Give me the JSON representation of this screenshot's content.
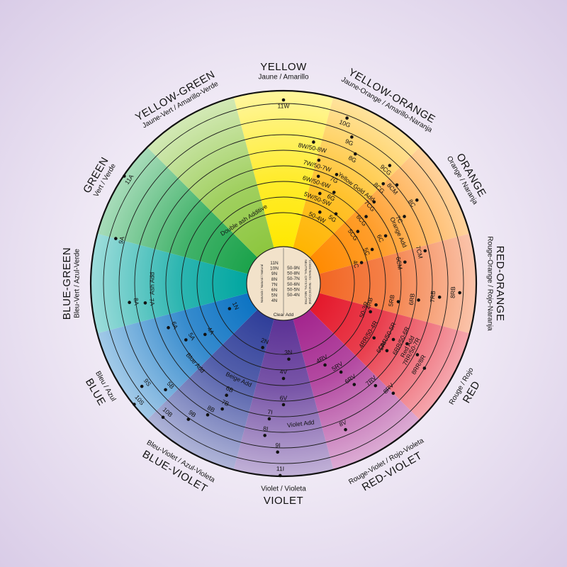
{
  "segments": [
    {
      "id": "yellow",
      "name": "YELLOW",
      "sub": "Jaune / Amarillo",
      "color": "#ffe800"
    },
    {
      "id": "yellow-orange",
      "name": "YELLOW-ORANGE",
      "sub": "Jaune-Orange / Amarillo-Naranja",
      "color": "#ffb400"
    },
    {
      "id": "orange",
      "name": "ORANGE",
      "sub": "Orange / Naranja",
      "color": "#ff8a00"
    },
    {
      "id": "red-orange",
      "name": "RED-ORANGE",
      "sub": "Rouge-Orange / Rojo-Naranja",
      "color": "#f26522"
    },
    {
      "id": "red",
      "name": "RED",
      "sub": "Rouge / Rojo",
      "color": "#e4172a"
    },
    {
      "id": "red-violet",
      "name": "RED-VIOLET",
      "sub": "Rouge-Violet / Rojo-Violeta",
      "color": "#a3248d"
    },
    {
      "id": "violet",
      "name": "VIOLET",
      "sub": "Violet / Violeta",
      "color": "#5b3195"
    },
    {
      "id": "blue-violet",
      "name": "BLUE-VIOLET",
      "sub": "Bleu-Violet / Azul-Violeta",
      "color": "#2e3d99"
    },
    {
      "id": "blue",
      "name": "BLUE",
      "sub": "Bleu / Azul",
      "color": "#0c73c3"
    },
    {
      "id": "blue-green",
      "name": "BLUE-GREEN",
      "sub": "Bleu-Vert / Azul-Verde",
      "color": "#00a6a0"
    },
    {
      "id": "green",
      "name": "GREEN",
      "sub": "Vert / Verde",
      "color": "#1aa24a"
    },
    {
      "id": "yellow-green",
      "name": "YELLOW-GREEN",
      "sub": "Jaune-Vert / Amarillo-Verde",
      "color": "#8cc63e"
    }
  ],
  "codes": [
    {
      "t": "11W",
      "a": 0,
      "r": 250
    },
    {
      "t": "10G",
      "a": 21,
      "r": 241
    },
    {
      "t": "9G",
      "a": 25,
      "r": 219
    },
    {
      "t": "8G",
      "a": 29,
      "r": 200
    },
    {
      "t": "8W/50-8W",
      "a": 12,
      "r": 195
    },
    {
      "t": "7W/50-7W",
      "a": 16,
      "r": 172
    },
    {
      "t": "7G",
      "a": 26,
      "r": 162
    },
    {
      "t": "6W/50-6W",
      "a": 18,
      "r": 150
    },
    {
      "t": "6G",
      "a": 29,
      "r": 138
    },
    {
      "t": "5W/50-5W",
      "a": 22,
      "r": 128
    },
    {
      "t": "5G",
      "a": 37,
      "r": 114
    },
    {
      "t": "50-4W",
      "a": 27,
      "r": 104
    },
    {
      "t": "Yellow Gold Add",
      "a": 37,
      "r": 170
    },
    {
      "t": "9CG",
      "a": 42,
      "r": 215
    },
    {
      "t": "8CG",
      "a": 45,
      "r": 190
    },
    {
      "t": "8CM",
      "a": 49,
      "r": 203
    },
    {
      "t": "7CG",
      "a": 48,
      "r": 163
    },
    {
      "t": "6CG",
      "a": 51,
      "r": 141
    },
    {
      "t": "5CG",
      "a": 55,
      "r": 119
    },
    {
      "t": "8C",
      "a": 58,
      "r": 213
    },
    {
      "t": "7C",
      "a": 61,
      "r": 186
    },
    {
      "t": "6C",
      "a": 65,
      "r": 150
    },
    {
      "t": "5C",
      "a": 69,
      "r": 125
    },
    {
      "t": "4C",
      "a": 75,
      "r": 105
    },
    {
      "t": "Orange Add",
      "a": 66,
      "r": 177
    },
    {
      "t": "7CM",
      "a": 77,
      "r": 196
    },
    {
      "t": "6CM",
      "a": 80,
      "r": 165
    },
    {
      "t": "8RB",
      "a": 93,
      "r": 240
    },
    {
      "t": "7RB",
      "a": 95,
      "r": 212
    },
    {
      "t": "6RB",
      "a": 97,
      "r": 183
    },
    {
      "t": "5RB",
      "a": 99,
      "r": 155
    },
    {
      "t": "4RB",
      "a": 103,
      "r": 125
    },
    {
      "t": "50-3R",
      "a": 108,
      "r": 120
    },
    {
      "t": "Red Add",
      "a": 117,
      "r": 197
    },
    {
      "t": "8RR/8R",
      "a": 121,
      "r": 223
    },
    {
      "t": "7RR/50-7R",
      "a": 118,
      "r": 205
    },
    {
      "t": "6RR/50-6R",
      "a": 116,
      "r": 185
    },
    {
      "t": "5RR/50-5R",
      "a": 117,
      "r": 165
    },
    {
      "t": "4RR/50-4R",
      "a": 121,
      "r": 140
    },
    {
      "t": "6CM",
      "a": 123,
      "r": 165
    },
    {
      "t": "8RV",
      "a": 135,
      "r": 210
    },
    {
      "t": "7RV",
      "a": 138,
      "r": 185
    },
    {
      "t": "6RV",
      "a": 145,
      "r": 165
    },
    {
      "t": "5RV",
      "a": 147,
      "r": 140
    },
    {
      "t": "4RV",
      "a": 153,
      "r": 120
    },
    {
      "t": "8V",
      "a": 157,
      "r": 215
    },
    {
      "t": "Violet Add",
      "a": 173,
      "r": 200
    },
    {
      "t": "3N",
      "a": 176,
      "r": 98
    },
    {
      "t": "4V",
      "a": 180,
      "r": 125
    },
    {
      "t": "6V",
      "a": 180,
      "r": 162
    },
    {
      "t": "7I",
      "a": 186,
      "r": 183
    },
    {
      "t": "8I",
      "a": 187,
      "r": 207
    },
    {
      "t": "9I",
      "a": 182,
      "r": 229
    },
    {
      "t": "11I",
      "a": 181,
      "r": 262
    },
    {
      "t": "6B",
      "a": 207,
      "r": 168
    },
    {
      "t": "7B",
      "a": 206,
      "r": 188
    },
    {
      "t": "8B",
      "a": 210,
      "r": 205
    },
    {
      "t": "9B",
      "a": 215,
      "r": 225
    },
    {
      "t": "10B",
      "a": 222,
      "r": 245
    },
    {
      "t": "Beige Add",
      "a": 205,
      "r": 150
    },
    {
      "t": "2N",
      "a": 198,
      "r": 86
    },
    {
      "t": "5B",
      "a": 228,
      "r": 215
    },
    {
      "t": "9S",
      "a": 234,
      "r": 238
    },
    {
      "t": "10S",
      "a": 231,
      "r": 262
    },
    {
      "t": "Blue Add",
      "a": 228,
      "r": 168
    },
    {
      "t": "4A",
      "a": 237,
      "r": 123
    },
    {
      "t": "5A",
      "a": 240,
      "r": 150
    },
    {
      "t": "6A",
      "a": 249,
      "r": 165
    },
    {
      "t": "1N",
      "a": 245,
      "r": 75
    },
    {
      "t": "7A",
      "a": 262,
      "r": 188
    },
    {
      "t": "8A",
      "a": 263,
      "r": 210
    },
    {
      "t": "Ash Add",
      "a": 270,
      "r": 185
    },
    {
      "t": "9A",
      "a": 285,
      "r": 236
    },
    {
      "t": "11A",
      "a": 304,
      "r": 262
    },
    {
      "t": "Double ash Additive",
      "a": 328,
      "r": 105
    }
  ],
  "center": {
    "left": {
      "title": "Naturals / Natural / Natural",
      "items": [
        "11N",
        "10N",
        "9N",
        "8N",
        "7N",
        "6N",
        "5N",
        "4N"
      ]
    },
    "right": {
      "title": "NEUTRAL CRYSTAL NEUTRE",
      "sub": "Cristal Neutro - Neutral Crystal",
      "items": [
        "50-9N",
        "50-8N",
        "50-7N",
        "50-6N",
        "50-5N",
        "50-4N"
      ]
    },
    "bottom": "Clear Add"
  }
}
